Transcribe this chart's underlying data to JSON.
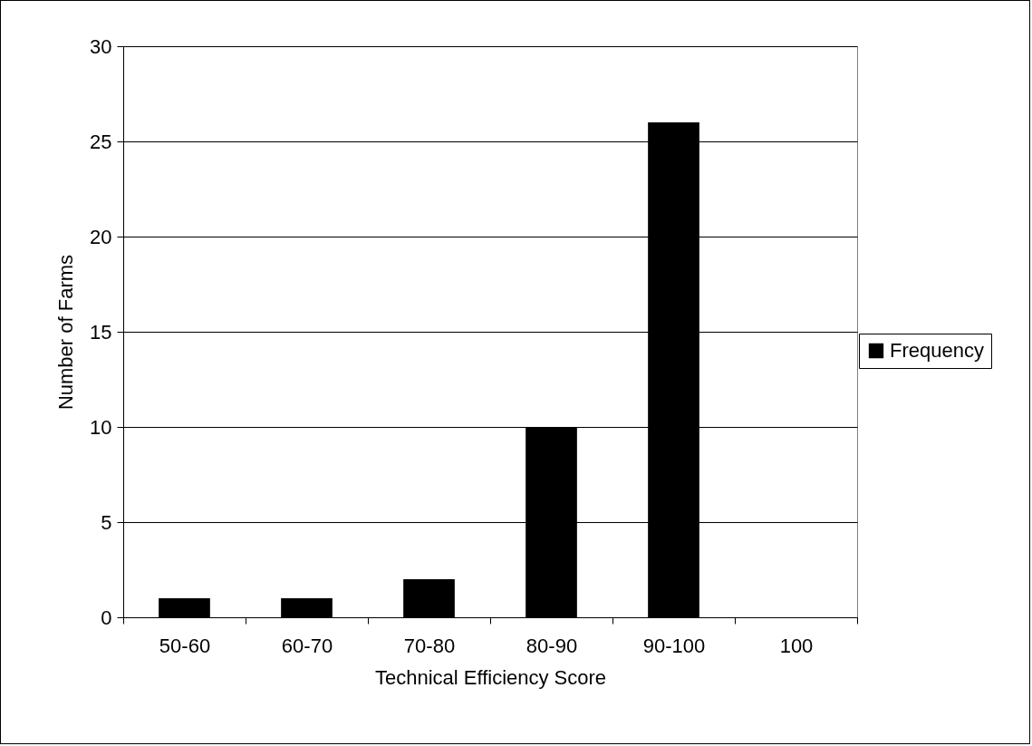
{
  "chart_data": {
    "type": "bar",
    "xlabel": "Technical Efficiency Score",
    "ylabel": "Number of Farms",
    "categories": [
      "50-60",
      "60-70",
      "70-80",
      "80-90",
      "90-100",
      "100"
    ],
    "series": [
      {
        "name": "Frequency",
        "color": "#000000",
        "values": [
          1,
          1,
          2,
          10,
          26,
          0
        ]
      }
    ],
    "ylim": [
      0,
      30
    ],
    "yticks": [
      0,
      5,
      10,
      15,
      20,
      25,
      30
    ],
    "grid": "y",
    "legend": "right"
  }
}
